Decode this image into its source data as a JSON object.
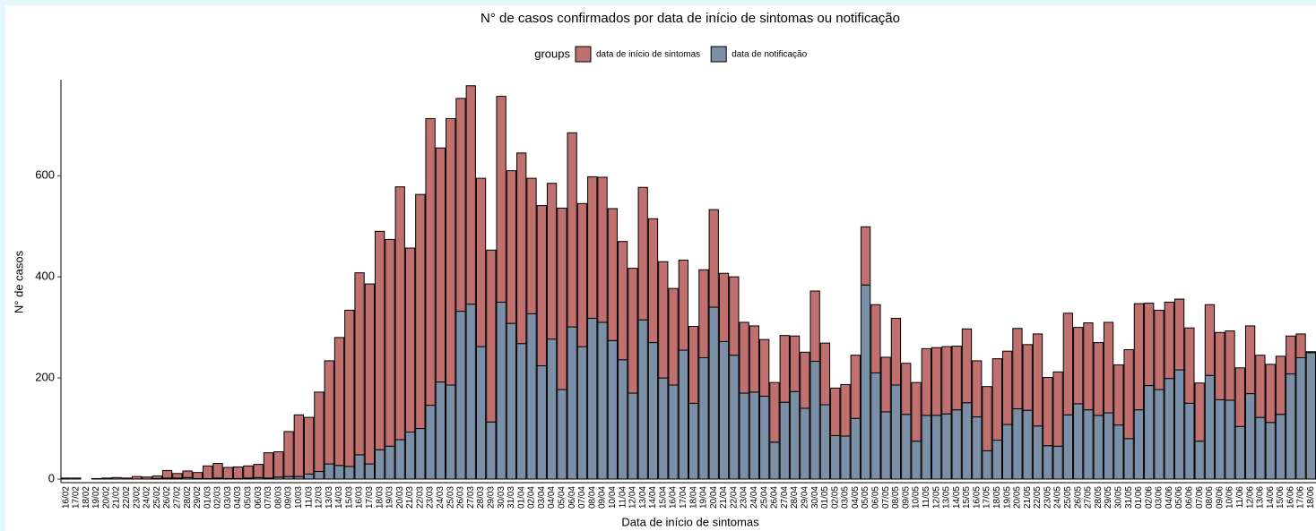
{
  "chart_data": {
    "type": "stacked_bar",
    "title": "N° de casos confirmados por data de início de sintomas ou notificação",
    "x_label": "Data de início de sintomas",
    "y_label": "N° de casos",
    "legend_title": "groups",
    "legend_position": "top",
    "categories": [
      "16/02",
      "17/02",
      "18/02",
      "19/02",
      "20/02",
      "21/02",
      "22/02",
      "23/02",
      "24/02",
      "25/02",
      "26/02",
      "27/02",
      "28/02",
      "29/02",
      "01/03",
      "02/03",
      "03/03",
      "04/03",
      "05/03",
      "06/03",
      "07/03",
      "08/03",
      "09/03",
      "10/03",
      "11/03",
      "12/03",
      "13/03",
      "14/03",
      "15/03",
      "16/03",
      "17/03",
      "18/03",
      "19/03",
      "20/03",
      "21/03",
      "22/03",
      "23/03",
      "24/03",
      "25/03",
      "26/03",
      "27/03",
      "28/03",
      "29/03",
      "30/03",
      "31/03",
      "01/04",
      "02/04",
      "03/04",
      "04/04",
      "05/04",
      "06/04",
      "07/04",
      "08/04",
      "09/04",
      "10/04",
      "11/04",
      "12/04",
      "13/04",
      "14/04",
      "15/04",
      "16/04",
      "17/04",
      "18/04",
      "19/04",
      "20/04",
      "21/04",
      "22/04",
      "23/04",
      "24/04",
      "25/04",
      "26/04",
      "27/04",
      "28/04",
      "29/04",
      "30/04",
      "01/05",
      "02/05",
      "03/05",
      "04/05",
      "05/05",
      "06/05",
      "07/05",
      "08/05",
      "09/05",
      "10/05",
      "11/05",
      "12/05",
      "13/05",
      "14/05",
      "15/05",
      "16/05",
      "17/05",
      "18/05",
      "19/05",
      "20/05",
      "21/05",
      "22/05",
      "23/05",
      "24/05",
      "25/05",
      "26/05",
      "27/05",
      "28/05",
      "29/05",
      "30/05",
      "31/05",
      "01/06",
      "02/06",
      "03/06",
      "04/06",
      "05/06",
      "06/06",
      "07/06",
      "08/06",
      "09/06",
      "10/06",
      "11/06",
      "12/06",
      "13/06",
      "14/06",
      "15/06",
      "16/06",
      "17/06",
      "18/06"
    ],
    "series": [
      {
        "name": "data de início de sintomas",
        "color": "#c0706e",
        "values": [
          2,
          2,
          0,
          1,
          2,
          3,
          2,
          5,
          4,
          5,
          15,
          9,
          13,
          12,
          25,
          29,
          22,
          23,
          24,
          26,
          50,
          50,
          89,
          122,
          112,
          157,
          204,
          253,
          309,
          360,
          356,
          432,
          409,
          500,
          364,
          463,
          567,
          463,
          527,
          421,
          432,
          333,
          340,
          407,
          302,
          377,
          268,
          317,
          308,
          359,
          384,
          283,
          280,
          287,
          261,
          234,
          247,
          262,
          245,
          230,
          191,
          178,
          152,
          174,
          193,
          135,
          155,
          140,
          131,
          112,
          118,
          132,
          110,
          111,
          139,
          122,
          94,
          102,
          125,
          115,
          135,
          108,
          132,
          101,
          116,
          132,
          134,
          133,
          126,
          146,
          111,
          127,
          161,
          145,
          159,
          130,
          182,
          135,
          147,
          201,
          151,
          172,
          144,
          179,
          119,
          176,
          210,
          163,
          157,
          151,
          140,
          149,
          115,
          140,
          133,
          137,
          116,
          134,
          123,
          115,
          115,
          75,
          47,
          2
        ]
      },
      {
        "name": "data de notificação",
        "color": "#7b8fa6",
        "values": [
          0,
          0,
          0,
          0,
          0,
          0,
          0,
          0,
          0,
          1,
          2,
          2,
          3,
          1,
          1,
          2,
          1,
          1,
          2,
          3,
          2,
          4,
          5,
          5,
          10,
          15,
          30,
          27,
          25,
          48,
          30,
          58,
          65,
          78,
          93,
          100,
          146,
          192,
          186,
          332,
          346,
          262,
          113,
          350,
          308,
          268,
          327,
          224,
          277,
          177,
          301,
          262,
          318,
          310,
          274,
          236,
          170,
          315,
          270,
          200,
          186,
          255,
          150,
          240,
          340,
          272,
          245,
          170,
          172,
          164,
          73,
          152,
          173,
          140,
          233,
          147,
          86,
          85,
          120,
          384,
          210,
          133,
          186,
          128,
          75,
          126,
          126,
          129,
          137,
          151,
          123,
          56,
          77,
          108,
          139,
          136,
          105,
          66,
          65,
          127,
          149,
          137,
          126,
          131,
          107,
          80,
          137,
          185,
          177,
          199,
          216,
          150,
          75,
          205,
          157,
          156,
          104,
          169,
          122,
          112,
          128,
          208,
          240,
          250
        ]
      }
    ],
    "ylim": [
      0,
      790
    ],
    "yticks": [
      0,
      200,
      400,
      600
    ],
    "grid": false
  }
}
